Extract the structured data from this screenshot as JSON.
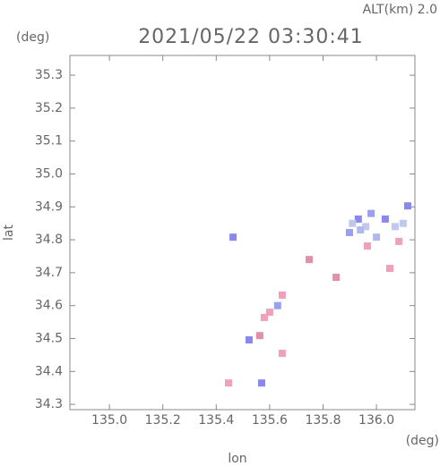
{
  "chart_data": {
    "type": "scatter",
    "title": "2021/05/22 03:30:41",
    "subtitle": "ALT(km) 2.0",
    "x_label": "lon",
    "y_label": "lat",
    "x_unit": "(deg)",
    "y_unit": "(deg)",
    "xlim": [
      134.852,
      136.144
    ],
    "ylim": [
      34.284,
      35.36
    ],
    "xticks": [
      {
        "value": 135,
        "label": "135.0"
      },
      135.2,
      135.4,
      135.6,
      135.8,
      {
        "value": 136,
        "label": "136.0"
      }
    ],
    "yticks": [
      34.3,
      34.4,
      34.5,
      34.6,
      34.7,
      34.8,
      34.9,
      {
        "value": 35,
        "label": "35.0"
      },
      35.1,
      35.2,
      35.3
    ],
    "x": [
      135.932,
      136.033,
      136.117,
      135.899,
      136.0,
      135.966,
      136.084,
      135.849,
      135.748,
      135.647,
      135.58,
      135.563,
      135.647,
      135.523,
      135.463,
      135.57,
      135.446,
      136.05,
      135.96,
      136.07,
      135.91,
      136.1,
      135.98,
      135.94,
      135.63,
      135.6
    ],
    "values": [
      34.863,
      34.863,
      34.903,
      34.822,
      34.808,
      34.781,
      34.795,
      34.686,
      34.74,
      34.632,
      34.564,
      34.509,
      34.455,
      34.496,
      34.808,
      34.365,
      34.365,
      34.713,
      34.84,
      34.84,
      34.85,
      34.85,
      34.88,
      34.83,
      34.6,
      34.58
    ],
    "colors": [
      "#8888ee",
      "#8888ee",
      "#8888ee",
      "#9aa0ee",
      "#b0b8ee",
      "#f0a0b8",
      "#f0a0b8",
      "#e090a8",
      "#e090a8",
      "#f0a0b8",
      "#f0a0b8",
      "#e090a8",
      "#f0a0b8",
      "#8888ee",
      "#8888ee",
      "#8888ee",
      "#f0a0b8",
      "#f0a0b8",
      "#c0c8f0",
      "#c0c8f0",
      "#c0c8f0",
      "#c0c8f0",
      "#9aa0ee",
      "#b0b8ee",
      "#9aa0ee",
      "#f0a0b8"
    ]
  }
}
